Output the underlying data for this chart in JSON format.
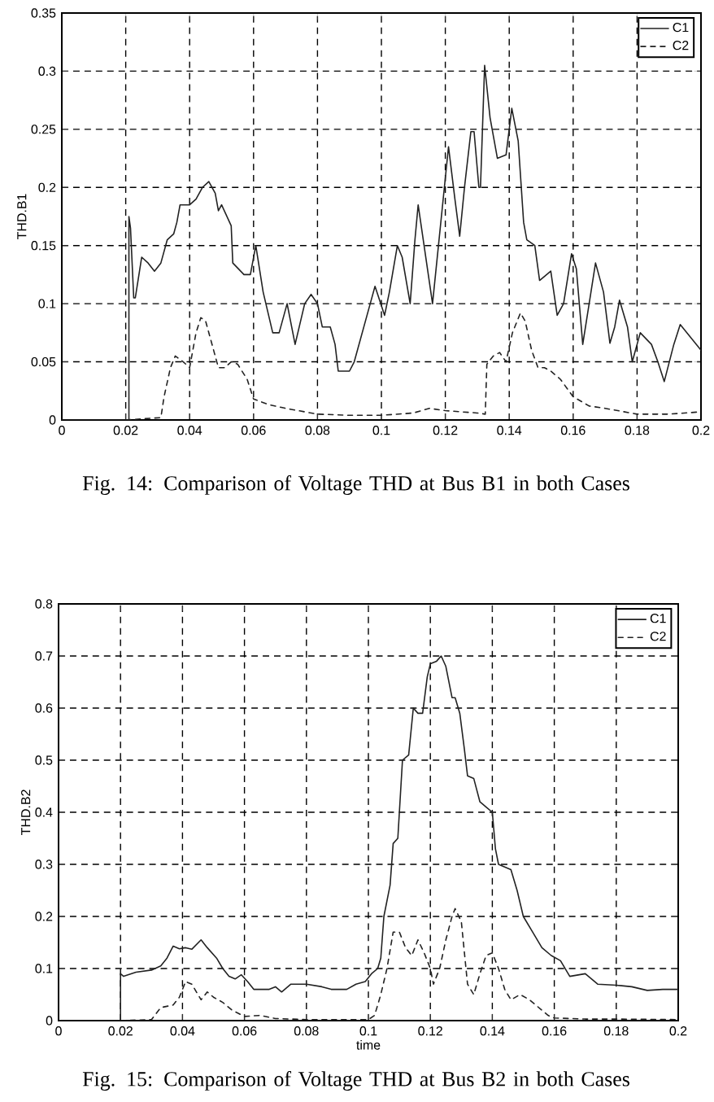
{
  "chart_data": [
    {
      "type": "line",
      "ylabel": "THD.B1",
      "annotations": [
        "Fig. 14: Comparison of Voltage THD at Bus B1 in both Cases"
      ],
      "xlim": [
        0,
        0.2
      ],
      "ylim": [
        0,
        0.35
      ],
      "xticks": [
        0,
        0.02,
        0.04,
        0.06,
        0.08,
        0.1,
        0.12,
        0.14,
        0.16,
        0.18,
        0.2
      ],
      "yticks": [
        0,
        0.05,
        0.1,
        0.15,
        0.2,
        0.25,
        0.3,
        0.35
      ],
      "grid": true,
      "legend": "top right",
      "series": [
        {
          "name": "C1",
          "color": "#222222",
          "line_style": "solid",
          "x": [
            0,
            0.021,
            0.021,
            0.0215,
            0.0225,
            0.023,
            0.025,
            0.027,
            0.029,
            0.031,
            0.033,
            0.035,
            0.036,
            0.037,
            0.04,
            0.042,
            0.044,
            0.046,
            0.048,
            0.049,
            0.05,
            0.053,
            0.0535,
            0.057,
            0.059,
            0.0607,
            0.063,
            0.066,
            0.068,
            0.0705,
            0.073,
            0.076,
            0.078,
            0.08,
            0.0815,
            0.084,
            0.0855,
            0.0865,
            0.09,
            0.0915,
            0.0965,
            0.098,
            0.101,
            0.1025,
            0.105,
            0.1065,
            0.109,
            0.1105,
            0.1115,
            0.116,
            0.121,
            0.123,
            0.1245,
            0.126,
            0.128,
            0.129,
            0.1305,
            0.131,
            0.1323,
            0.134,
            0.1363,
            0.139,
            0.1408,
            0.1428,
            0.1445,
            0.1455,
            0.148,
            0.1495,
            0.153,
            0.155,
            0.157,
            0.1595,
            0.161,
            0.163,
            0.165,
            0.167,
            0.1695,
            0.1715,
            0.173,
            0.1745,
            0.177,
            0.1785,
            0.181,
            0.1845,
            0.1865,
            0.1885,
            0.1915,
            0.1935,
            0.2
          ],
          "values": [
            0,
            0,
            0.175,
            0.165,
            0.105,
            0.105,
            0.14,
            0.135,
            0.128,
            0.135,
            0.155,
            0.16,
            0.17,
            0.185,
            0.185,
            0.19,
            0.2,
            0.205,
            0.195,
            0.18,
            0.185,
            0.167,
            0.135,
            0.125,
            0.125,
            0.15,
            0.11,
            0.075,
            0.075,
            0.1,
            0.065,
            0.1,
            0.108,
            0.1,
            0.08,
            0.08,
            0.065,
            0.042,
            0.042,
            0.05,
            0.1,
            0.115,
            0.09,
            0.11,
            0.15,
            0.14,
            0.1,
            0.155,
            0.185,
            0.1,
            0.235,
            0.19,
            0.158,
            0.2,
            0.248,
            0.248,
            0.2,
            0.2,
            0.305,
            0.26,
            0.225,
            0.228,
            0.268,
            0.24,
            0.17,
            0.155,
            0.15,
            0.12,
            0.128,
            0.09,
            0.1,
            0.143,
            0.13,
            0.065,
            0.1,
            0.135,
            0.11,
            0.066,
            0.08,
            0.103,
            0.08,
            0.05,
            0.075,
            0.065,
            0.05,
            0.033,
            0.065,
            0.082,
            0.06
          ]
        },
        {
          "name": "C2",
          "color": "#222222",
          "line_style": "dashed",
          "x": [
            0.02,
            0.031,
            0.032,
            0.034,
            0.0355,
            0.038,
            0.04,
            0.042,
            0.0435,
            0.045,
            0.047,
            0.049,
            0.051,
            0.053,
            0.055,
            0.058,
            0.06,
            0.065,
            0.07,
            0.08,
            0.09,
            0.1,
            0.11,
            0.115,
            0.12,
            0.13,
            0.1325,
            0.133,
            0.135,
            0.137,
            0.139,
            0.141,
            0.1435,
            0.145,
            0.147,
            0.149,
            0.151,
            0.153,
            0.156,
            0.16,
            0.165,
            0.17,
            0.18,
            0.19,
            0.2
          ],
          "values": [
            0,
            0.002,
            0.02,
            0.045,
            0.055,
            0.05,
            0.045,
            0.075,
            0.088,
            0.085,
            0.065,
            0.045,
            0.045,
            0.05,
            0.048,
            0.035,
            0.018,
            0.013,
            0.01,
            0.005,
            0.004,
            0.004,
            0.006,
            0.01,
            0.008,
            0.006,
            0.005,
            0.048,
            0.055,
            0.058,
            0.05,
            0.075,
            0.092,
            0.085,
            0.06,
            0.045,
            0.045,
            0.042,
            0.035,
            0.02,
            0.012,
            0.01,
            0.005,
            0.005,
            0.007
          ]
        }
      ]
    },
    {
      "type": "line",
      "xlabel": "time",
      "ylabel": "THD.B2",
      "annotations": [
        "Fig. 15: Comparison of Voltage THD at Bus B2 in both Cases"
      ],
      "xlim": [
        0,
        0.2
      ],
      "ylim": [
        0,
        0.8
      ],
      "xticks": [
        0,
        0.02,
        0.04,
        0.06,
        0.08,
        0.1,
        0.12,
        0.14,
        0.16,
        0.18,
        0.2
      ],
      "yticks": [
        0,
        0.1,
        0.2,
        0.3,
        0.4,
        0.5,
        0.6,
        0.7,
        0.8
      ],
      "grid": true,
      "legend": "top right",
      "series": [
        {
          "name": "C1",
          "color": "#222222",
          "line_style": "solid",
          "x": [
            0,
            0.02,
            0.02,
            0.021,
            0.025,
            0.03,
            0.033,
            0.035,
            0.037,
            0.039,
            0.041,
            0.043,
            0.046,
            0.048,
            0.051,
            0.053,
            0.055,
            0.057,
            0.059,
            0.061,
            0.063,
            0.068,
            0.07,
            0.072,
            0.075,
            0.08,
            0.085,
            0.088,
            0.093,
            0.096,
            0.099,
            0.101,
            0.103,
            0.104,
            0.105,
            0.107,
            0.108,
            0.1095,
            0.1105,
            0.111,
            0.113,
            0.1145,
            0.116,
            0.1175,
            0.119,
            0.12,
            0.122,
            0.1235,
            0.125,
            0.127,
            0.128,
            0.1295,
            0.131,
            0.132,
            0.134,
            0.136,
            0.138,
            0.14,
            0.141,
            0.142,
            0.146,
            0.148,
            0.15,
            0.153,
            0.156,
            0.159,
            0.162,
            0.165,
            0.17,
            0.174,
            0.18,
            0.185,
            0.19,
            0.195,
            0.2
          ],
          "values": [
            0,
            0,
            0.09,
            0.085,
            0.093,
            0.097,
            0.105,
            0.12,
            0.143,
            0.138,
            0.14,
            0.137,
            0.155,
            0.14,
            0.12,
            0.1,
            0.085,
            0.08,
            0.088,
            0.075,
            0.06,
            0.06,
            0.065,
            0.055,
            0.07,
            0.07,
            0.065,
            0.06,
            0.06,
            0.07,
            0.075,
            0.09,
            0.1,
            0.12,
            0.2,
            0.26,
            0.34,
            0.35,
            0.45,
            0.5,
            0.51,
            0.6,
            0.59,
            0.59,
            0.66,
            0.685,
            0.69,
            0.7,
            0.68,
            0.62,
            0.62,
            0.59,
            0.52,
            0.47,
            0.465,
            0.42,
            0.41,
            0.4,
            0.33,
            0.3,
            0.29,
            0.25,
            0.2,
            0.17,
            0.14,
            0.125,
            0.115,
            0.085,
            0.09,
            0.07,
            0.068,
            0.065,
            0.058,
            0.06,
            0.06
          ]
        },
        {
          "name": "C2",
          "color": "#222222",
          "line_style": "dashed",
          "x": [
            0.02,
            0.03,
            0.033,
            0.037,
            0.039,
            0.041,
            0.043,
            0.045,
            0.046,
            0.048,
            0.05,
            0.053,
            0.056,
            0.06,
            0.065,
            0.07,
            0.08,
            0.09,
            0.1,
            0.102,
            0.104,
            0.106,
            0.108,
            0.11,
            0.112,
            0.114,
            0.116,
            0.118,
            0.12,
            0.121,
            0.123,
            0.125,
            0.127,
            0.128,
            0.13,
            0.132,
            0.134,
            0.136,
            0.138,
            0.14,
            0.142,
            0.144,
            0.146,
            0.149,
            0.152,
            0.155,
            0.158,
            0.16,
            0.17,
            0.18,
            0.2
          ],
          "values": [
            0,
            0.002,
            0.025,
            0.03,
            0.045,
            0.075,
            0.07,
            0.05,
            0.04,
            0.055,
            0.045,
            0.035,
            0.02,
            0.008,
            0.01,
            0.004,
            0.002,
            0.002,
            0.002,
            0.01,
            0.05,
            0.1,
            0.17,
            0.17,
            0.14,
            0.125,
            0.155,
            0.13,
            0.1,
            0.07,
            0.1,
            0.155,
            0.2,
            0.215,
            0.19,
            0.07,
            0.05,
            0.09,
            0.125,
            0.13,
            0.1,
            0.06,
            0.04,
            0.05,
            0.04,
            0.025,
            0.01,
            0.005,
            0.003,
            0.003,
            0.002
          ]
        }
      ]
    }
  ]
}
